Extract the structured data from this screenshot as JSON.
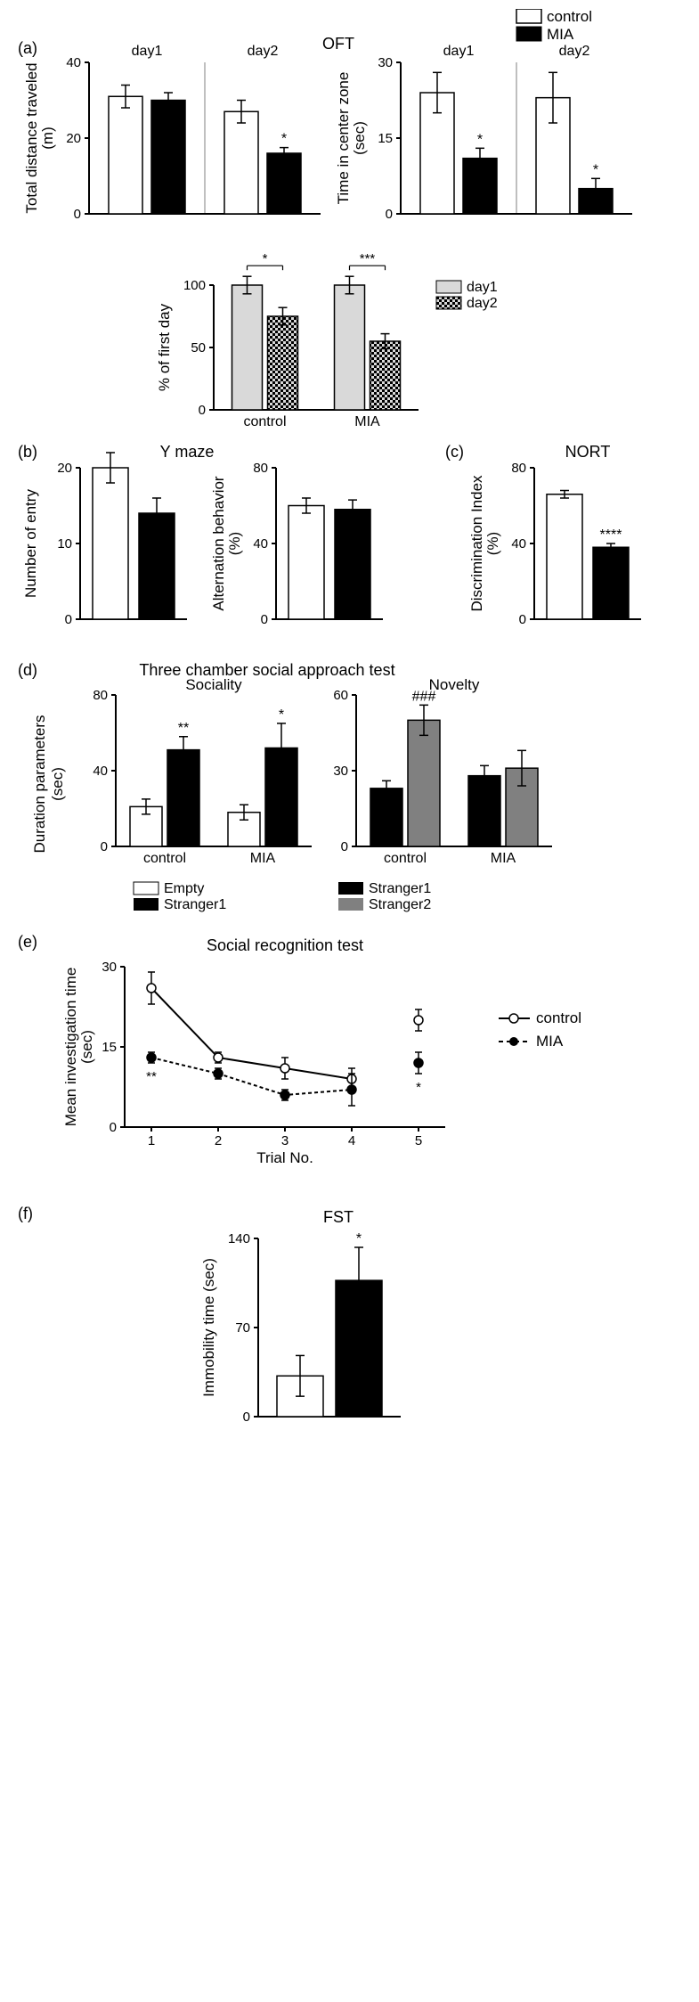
{
  "panel_a": {
    "label": "(a)",
    "title": "OFT",
    "legend": {
      "control": "control",
      "mia": "MIA"
    },
    "chart1": {
      "type": "bar",
      "ylabel": "Total distance traveled\n(m)",
      "ylim": [
        0,
        40
      ],
      "ytick_step": 20,
      "groups": [
        "day1",
        "day2"
      ],
      "bars": [
        {
          "grp": 0,
          "series": "control",
          "val": 31,
          "err": 3,
          "fill": "#ffffff",
          "sig": ""
        },
        {
          "grp": 0,
          "series": "mia",
          "val": 30,
          "err": 2,
          "fill": "#000000",
          "sig": ""
        },
        {
          "grp": 1,
          "series": "control",
          "val": 27,
          "err": 3,
          "fill": "#ffffff",
          "sig": ""
        },
        {
          "grp": 1,
          "series": "mia",
          "val": 16,
          "err": 1.5,
          "fill": "#000000",
          "sig": "*"
        }
      ]
    },
    "chart2": {
      "type": "bar",
      "ylabel": "Time in center zone\n(sec)",
      "ylim": [
        0,
        30
      ],
      "ytick_step": 15,
      "groups": [
        "day1",
        "day2"
      ],
      "bars": [
        {
          "grp": 0,
          "series": "control",
          "val": 24,
          "err": 4,
          "fill": "#ffffff",
          "sig": ""
        },
        {
          "grp": 0,
          "series": "mia",
          "val": 11,
          "err": 2,
          "fill": "#000000",
          "sig": "*"
        },
        {
          "grp": 1,
          "series": "control",
          "val": 23,
          "err": 5,
          "fill": "#ffffff",
          "sig": ""
        },
        {
          "grp": 1,
          "series": "mia",
          "val": 5,
          "err": 2,
          "fill": "#000000",
          "sig": "*"
        }
      ]
    },
    "chart3": {
      "type": "bar",
      "ylabel": "% of first day",
      "ylim": [
        0,
        100
      ],
      "ytick_step": 50,
      "legend": {
        "day1": "day1",
        "day2": "day2"
      },
      "groups": [
        "control",
        "MIA"
      ],
      "bars": [
        {
          "grp": 0,
          "series": "day1",
          "val": 100,
          "err": 7,
          "fill": "#d9d9d9",
          "pattern": ""
        },
        {
          "grp": 0,
          "series": "day2",
          "val": 75,
          "err": 7,
          "fill": "#d9d9d9",
          "pattern": "check"
        },
        {
          "grp": 1,
          "series": "day1",
          "val": 100,
          "err": 7,
          "fill": "#d9d9d9",
          "pattern": ""
        },
        {
          "grp": 1,
          "series": "day2",
          "val": 55,
          "err": 6,
          "fill": "#d9d9d9",
          "pattern": "check"
        }
      ],
      "sig_brackets": [
        {
          "grp": 0,
          "text": "*"
        },
        {
          "grp": 1,
          "text": "***"
        }
      ]
    }
  },
  "panel_b": {
    "label": "(b)",
    "title": "Y maze",
    "chart1": {
      "ylabel": "Number of entry",
      "ylim": [
        0,
        20
      ],
      "ytick_step": 10,
      "bars": [
        {
          "series": "control",
          "val": 20,
          "err": 2,
          "fill": "#ffffff"
        },
        {
          "series": "mia",
          "val": 14,
          "err": 2,
          "fill": "#000000"
        }
      ]
    },
    "chart2": {
      "ylabel": "Alternation behavior\n(%)",
      "ylim": [
        0,
        80
      ],
      "ytick_step": 40,
      "bars": [
        {
          "series": "control",
          "val": 60,
          "err": 4,
          "fill": "#ffffff"
        },
        {
          "series": "mia",
          "val": 58,
          "err": 5,
          "fill": "#000000"
        }
      ]
    }
  },
  "panel_c": {
    "label": "(c)",
    "title": "NORT",
    "chart": {
      "ylabel": "Discrimination Index\n(%)",
      "ylim": [
        0,
        80
      ],
      "ytick_step": 40,
      "bars": [
        {
          "series": "control",
          "val": 66,
          "err": 2,
          "fill": "#ffffff",
          "sig": ""
        },
        {
          "series": "mia",
          "val": 38,
          "err": 2,
          "fill": "#000000",
          "sig": "****"
        }
      ]
    }
  },
  "panel_d": {
    "label": "(d)",
    "title": "Three chamber social approach test",
    "ylabel": "Duration parameters\n(sec)",
    "chart1": {
      "subtitle": "Sociality",
      "ylim": [
        0,
        80
      ],
      "ytick_step": 40,
      "groups": [
        "control",
        "MIA"
      ],
      "bars": [
        {
          "grp": 0,
          "series": "Empty",
          "val": 21,
          "err": 4,
          "fill": "#ffffff",
          "sig": ""
        },
        {
          "grp": 0,
          "series": "Stranger1",
          "val": 51,
          "err": 7,
          "fill": "#000000",
          "sig": "**"
        },
        {
          "grp": 1,
          "series": "Empty",
          "val": 18,
          "err": 4,
          "fill": "#ffffff",
          "sig": ""
        },
        {
          "grp": 1,
          "series": "Stranger1",
          "val": 52,
          "err": 13,
          "fill": "#000000",
          "sig": "*"
        }
      ]
    },
    "chart2": {
      "subtitle": "Novelty",
      "ylim": [
        0,
        60
      ],
      "ytick_step": 30,
      "groups": [
        "control",
        "MIA"
      ],
      "bars": [
        {
          "grp": 0,
          "series": "Stranger1",
          "val": 23,
          "err": 3,
          "fill": "#000000",
          "sig": ""
        },
        {
          "grp": 0,
          "series": "Stranger2",
          "val": 50,
          "err": 6,
          "fill": "#808080",
          "sig": "###"
        },
        {
          "grp": 1,
          "series": "Stranger1",
          "val": 28,
          "err": 4,
          "fill": "#000000",
          "sig": ""
        },
        {
          "grp": 1,
          "series": "Stranger2",
          "val": 31,
          "err": 7,
          "fill": "#808080",
          "sig": ""
        }
      ]
    },
    "legend": {
      "Empty": "Empty",
      "Stranger1": "Stranger1",
      "Stranger2": "Stranger2"
    }
  },
  "panel_e": {
    "label": "(e)",
    "title": "Social recognition test",
    "ylabel": "Mean investigation time\n(sec)",
    "xlabel": "Trial No.",
    "ylim": [
      0,
      30
    ],
    "ytick_step": 15,
    "xticks": [
      1,
      2,
      3,
      4,
      5
    ],
    "legend": {
      "control": "control",
      "mia": "MIA"
    },
    "series": {
      "control": {
        "points": [
          {
            "x": 1,
            "y": 26,
            "err": 3
          },
          {
            "x": 2,
            "y": 13,
            "err": 1
          },
          {
            "x": 3,
            "y": 11,
            "err": 2
          },
          {
            "x": 4,
            "y": 9,
            "err": 2
          }
        ],
        "trial5": {
          "x": 5,
          "y": 20,
          "err": 2
        },
        "marker_fill": "#ffffff",
        "line_dash": "none"
      },
      "mia": {
        "points": [
          {
            "x": 1,
            "y": 13,
            "err": 1,
            "sig": "**"
          },
          {
            "x": 2,
            "y": 10,
            "err": 1
          },
          {
            "x": 3,
            "y": 6,
            "err": 1
          },
          {
            "x": 4,
            "y": 7,
            "err": 3
          }
        ],
        "trial5": {
          "x": 5,
          "y": 12,
          "err": 2,
          "sig": "*"
        },
        "marker_fill": "#000000",
        "line_dash": "4,3"
      }
    }
  },
  "panel_f": {
    "label": "(f)",
    "title": "FST",
    "ylabel": "Immobility time (sec)",
    "ylim": [
      0,
      140
    ],
    "ytick_step": 70,
    "bars": [
      {
        "series": "control",
        "val": 32,
        "err": 16,
        "fill": "#ffffff",
        "sig": ""
      },
      {
        "series": "mia",
        "val": 107,
        "err": 26,
        "fill": "#000000",
        "sig": "*"
      }
    ]
  },
  "colors": {
    "stroke": "#000000",
    "text": "#000000"
  },
  "font": {
    "axis": 16,
    "label": 17,
    "tick": 15,
    "sig": 16,
    "title": 18
  }
}
